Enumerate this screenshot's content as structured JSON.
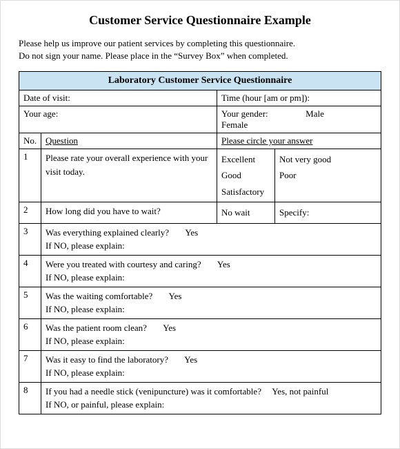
{
  "title": "Customer Service Questionnaire Example",
  "intro_line1": "Please help us improve our patient services by completing this questionnaire.",
  "intro_line2": "Do not sign your name.  Please place in the “Survey Box” when completed.",
  "banner": "Laboratory Customer Service Questionnaire",
  "row_date": "Date of visit:",
  "row_time": "Time (hour [am or pm]):",
  "row_age": "Your age:",
  "row_gender": "Your gender:",
  "gender_male": "Male",
  "gender_female": "Female",
  "col_no": "No.",
  "col_question": "Question",
  "col_answer": "Please circle your answer",
  "colors": {
    "banner_bg": "#c9e3f2",
    "border": "#000000",
    "page_border": "#dcdcdc",
    "background": "#ffffff"
  },
  "font": {
    "family": "Times New Roman",
    "title_size_pt": 18,
    "body_size_pt": 13
  },
  "questions": [
    {
      "no": "1",
      "q": "Please rate your overall experience with your visit today.",
      "a1": "Excellent\nGood\nSatisfactory",
      "a2": "Not very good\nPoor"
    },
    {
      "no": "2",
      "q": "How long did you have to wait?",
      "a1": "No wait",
      "a2": "Specify:"
    },
    {
      "no": "3",
      "q_line1": "Was everything explained clearly?",
      "q_line2": "If NO, please explain:",
      "yes": "Yes"
    },
    {
      "no": "4",
      "q_line1": "Were you treated with courtesy and caring?",
      "q_line2": "If NO, please explain:",
      "yes": "Yes"
    },
    {
      "no": "5",
      "q_line1": "Was the waiting comfortable?",
      "q_line2": "If NO, please explain:",
      "yes": "Yes"
    },
    {
      "no": "6",
      "q_line1": "Was the patient room clean?",
      "q_line2": "If NO, please explain:",
      "yes": "Yes"
    },
    {
      "no": "7",
      "q_line1": "Was it easy to find the laboratory?",
      "q_line2": "If NO, please explain:",
      "yes": "Yes"
    },
    {
      "no": "8",
      "q_line1": "If you had a needle stick (venipuncture) was it comfortable?",
      "q_line2": "If NO, or painful, please explain:",
      "yes": "Yes, not painful"
    }
  ]
}
